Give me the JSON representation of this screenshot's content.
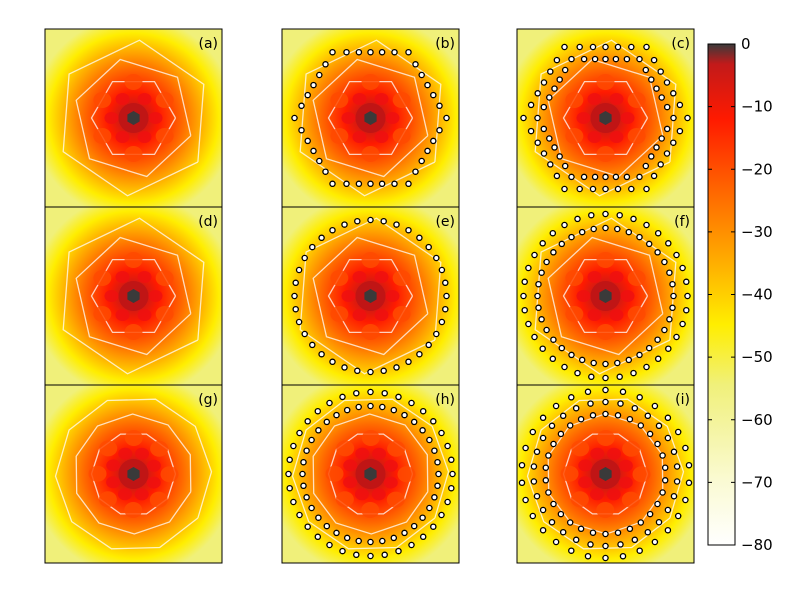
{
  "chart_data": {
    "type": "heatmap",
    "title": "",
    "panels": [
      {
        "label": "(a)",
        "rings": 0,
        "ring_points": 0,
        "ring_shape": "none",
        "pattern": "hex"
      },
      {
        "label": "(b)",
        "rings": 1,
        "ring_points": 36,
        "ring_shape": "hexagon",
        "pattern": "hex"
      },
      {
        "label": "(c)",
        "rings": 2,
        "ring_points": 72,
        "ring_shape": "hexagon",
        "pattern": "hex"
      },
      {
        "label": "(d)",
        "rings": 0,
        "ring_points": 0,
        "ring_shape": "none",
        "pattern": "hex"
      },
      {
        "label": "(e)",
        "rings": 1,
        "ring_points": 36,
        "ring_shape": "circle",
        "pattern": "hex"
      },
      {
        "label": "(f)",
        "rings": 2,
        "ring_points": 72,
        "ring_shape": "circle",
        "pattern": "hex"
      },
      {
        "label": "(g)",
        "rings": 0,
        "ring_points": 0,
        "ring_shape": "none",
        "pattern": "swirl"
      },
      {
        "label": "(h)",
        "rings": 2,
        "ring_points": 72,
        "ring_shape": "circle",
        "pattern": "swirl"
      },
      {
        "label": "(i)",
        "rings": 3,
        "ring_points": 90,
        "ring_shape": "circle",
        "pattern": "swirl"
      }
    ],
    "colorbar": {
      "range": [
        -80,
        0
      ],
      "ticks": [
        "0",
        "−10",
        "−20",
        "−30",
        "−40",
        "−50",
        "−60",
        "−70",
        "−80"
      ],
      "colors": {
        "0": "#3a3a3a",
        "-5": "#c21a1a",
        "-15": "#ff1a00",
        "-25": "#ff6a00",
        "-35": "#ffb000",
        "-45": "#ffee00",
        "-55": "#f0f07a",
        "-70": "#fafad2",
        "-80": "#ffffff"
      }
    },
    "marker": {
      "shape": "open-circle",
      "color": "#000000"
    },
    "grid": false
  }
}
